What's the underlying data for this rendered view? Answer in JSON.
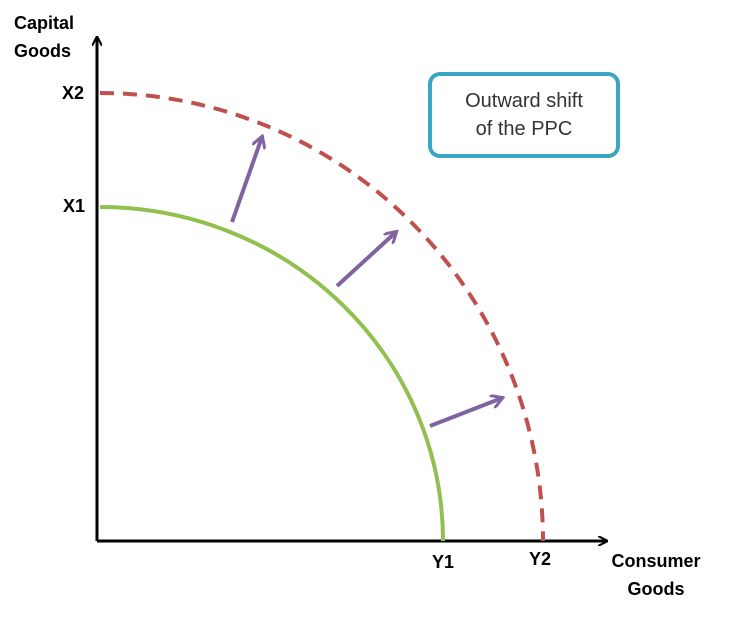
{
  "axes": {
    "y_title_line1": "Capital",
    "y_title_line2": "Goods",
    "x_title_line1": "Consumer",
    "x_title_line2": "Goods"
  },
  "ticks": {
    "x1": "X1",
    "x2": "X2",
    "y1": "Y1",
    "y2": "Y2"
  },
  "callout": {
    "line1": "Outward shift",
    "line2": "of the PPC"
  },
  "colors": {
    "original_ppc": "#92c050",
    "shifted_ppc": "#c0504d",
    "shift_arrows": "#8064a2",
    "callout_border": "#3aa6c4",
    "axes": "#000000"
  },
  "curves": {
    "original": "PPC (X1–Y1), solid",
    "shifted": "PPC (X2–Y2), dashed"
  }
}
